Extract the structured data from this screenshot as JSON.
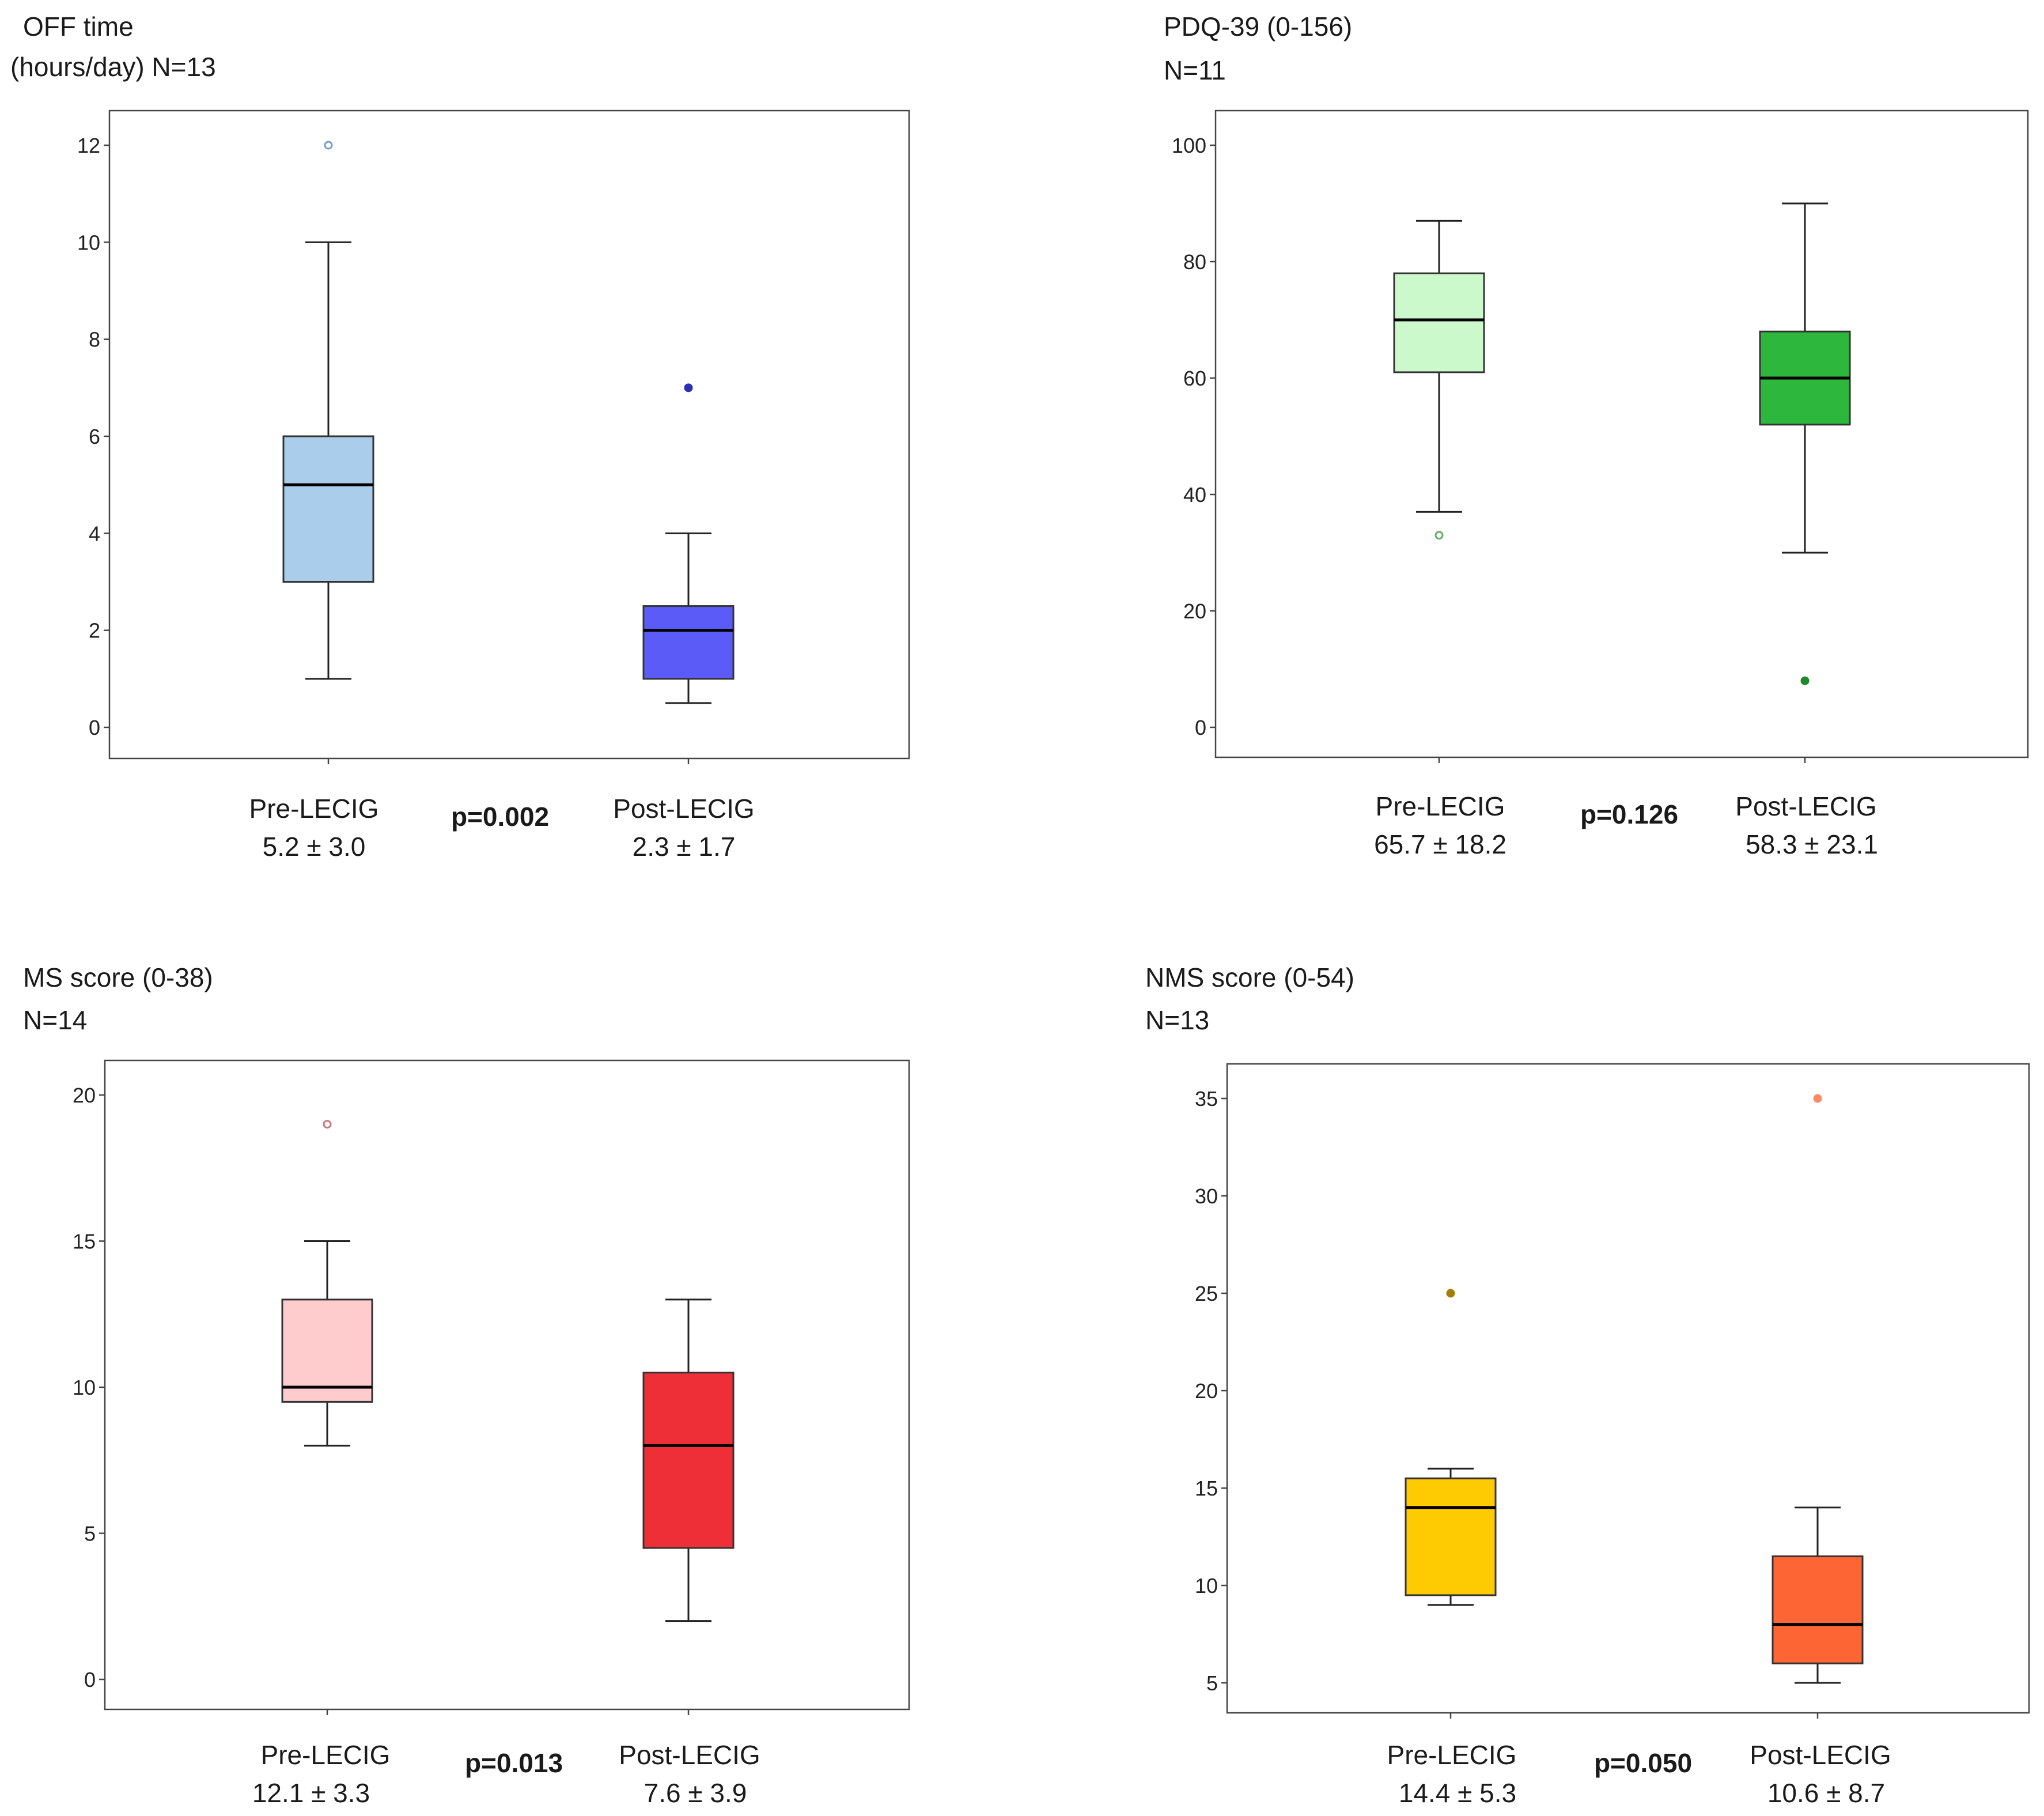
{
  "chart_data": [
    {
      "type": "box",
      "title_line1": "OFF time",
      "title_line2": "(hours/day) N=13",
      "ylim": [
        0,
        12
      ],
      "yticks": [
        0,
        2,
        4,
        6,
        8,
        10,
        12
      ],
      "p_value": "p=0.002",
      "groups": [
        {
          "label": "Pre-LECIG",
          "stat": "5.2 ± 3.0",
          "color": "#aacdeb",
          "outlier_color": "#6f9fcf",
          "outlier_filled": false,
          "min": 1,
          "q1": 3,
          "median": 5,
          "q3": 6,
          "max": 10,
          "outliers": [
            12
          ]
        },
        {
          "label": "Post-LECIG",
          "stat": "2.3 ± 1.7",
          "color": "#5b5cf7",
          "outlier_color": "#2c2db8",
          "outlier_filled": true,
          "min": 0.5,
          "q1": 1,
          "median": 2,
          "q3": 2.5,
          "max": 4,
          "outliers": [
            7
          ]
        }
      ]
    },
    {
      "type": "box",
      "title_line1": "PDQ-39 (0-156)",
      "title_line2": "N=11",
      "ylim": [
        0,
        100
      ],
      "yticks": [
        0,
        20,
        40,
        60,
        80,
        100
      ],
      "p_value": "p=0.126",
      "groups": [
        {
          "label": "Pre-LECIG",
          "stat": "65.7 ± 18.2",
          "color": "#ccf9cc",
          "outlier_color": "#5fb35f",
          "outlier_filled": false,
          "min": 37,
          "q1": 61,
          "median": 70,
          "q3": 78,
          "max": 87,
          "outliers": [
            33
          ]
        },
        {
          "label": "Post-LECIG",
          "stat": "58.3 ± 23.1",
          "color": "#2db83d",
          "outlier_color": "#1e8a2b",
          "outlier_filled": true,
          "min": 30,
          "q1": 52,
          "median": 60,
          "q3": 68,
          "max": 90,
          "outliers": [
            8
          ]
        }
      ]
    },
    {
      "type": "box",
      "title_line1": "MS score (0-38)",
      "title_line2": "N=14",
      "ylim": [
        0,
        20
      ],
      "yticks": [
        0,
        5,
        10,
        15,
        20
      ],
      "p_value": "p=0.013",
      "groups": [
        {
          "label": "Pre-LECIG",
          "stat": "12.1 ± 3.3",
          "color": "#fecccd",
          "outlier_color": "#c8787a",
          "outlier_filled": false,
          "min": 8,
          "q1": 9.5,
          "median": 10,
          "q3": 13,
          "max": 15,
          "outliers": [
            19
          ]
        },
        {
          "label": "Post-LECIG",
          "stat": "7.6 ± 3.9",
          "color": "#ee2f37",
          "outlier_color": "#b01c22",
          "outlier_filled": true,
          "min": 2,
          "q1": 4.5,
          "median": 8,
          "q3": 10.5,
          "max": 13,
          "outliers": []
        }
      ]
    },
    {
      "type": "box",
      "title_line1": "NMS score (0-54)",
      "title_line2": "N=13",
      "ylim": [
        5,
        35
      ],
      "yticks": [
        5,
        10,
        15,
        20,
        25,
        30,
        35
      ],
      "p_value": "p=0.050",
      "groups": [
        {
          "label": "Pre-LECIG",
          "stat": "14.4 ± 5.3",
          "color": "#fecb02",
          "outlier_color": "#a27f00",
          "outlier_filled": true,
          "min": 9,
          "q1": 9.5,
          "median": 14,
          "q3": 15.5,
          "max": 16,
          "outliers": [
            25
          ]
        },
        {
          "label": "Post-LECIG",
          "stat": "10.6 ± 8.7",
          "color": "#fe6534",
          "outlier_color": "#fe8a64",
          "outlier_filled": true,
          "min": 5,
          "q1": 6,
          "median": 8,
          "q3": 11.5,
          "max": 14,
          "outliers": [
            35
          ]
        }
      ]
    }
  ]
}
